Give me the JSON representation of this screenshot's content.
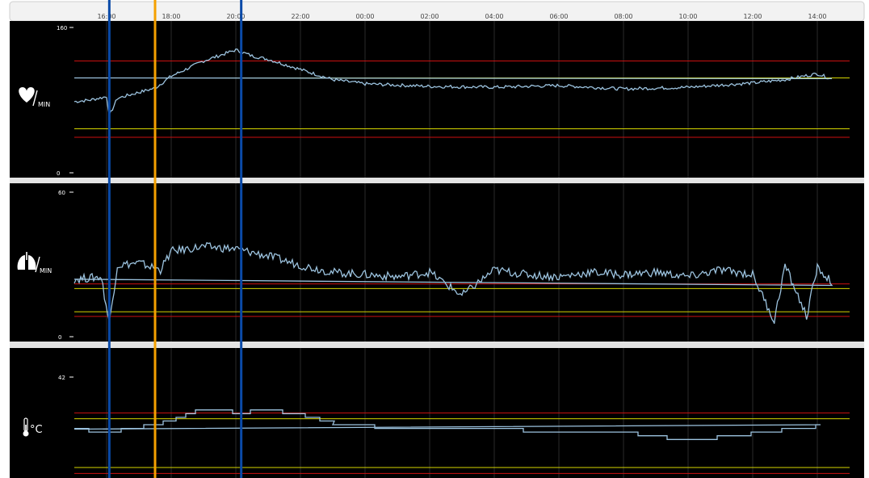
{
  "time_axis": {
    "ticks": [
      "16:00",
      "18:00",
      "20:00",
      "22:00",
      "00:00",
      "02:00",
      "04:00",
      "06:00",
      "08:00",
      "10:00",
      "12:00",
      "14:00"
    ]
  },
  "markers": [
    {
      "name": "marker-blue-1",
      "color": "#0a4aa8",
      "time": "16:05"
    },
    {
      "name": "marker-orange",
      "color": "#f5a000",
      "time": "17:30"
    },
    {
      "name": "marker-blue-2",
      "color": "#0a4aa8",
      "time": "20:10"
    }
  ],
  "colors": {
    "panel_bg": "#000000",
    "trace": "#9cc3df",
    "limit_red": "#cc1111",
    "limit_yellow": "#d6d600",
    "grid": "#2a2a2a"
  },
  "panels": [
    {
      "id": "heart-rate",
      "icon": "heart-icon",
      "unit": "MIN",
      "y_max_label": "160",
      "y_min_label": "0",
      "y_max": 160,
      "y_min": 0,
      "limits": {
        "red": [
          130,
          40
        ],
        "yellow": [
          110,
          50
        ]
      },
      "series": [
        [
          "15:00",
          82
        ],
        [
          "15:30",
          84
        ],
        [
          "16:00",
          88
        ],
        [
          "16:05",
          65
        ],
        [
          "16:20",
          86
        ],
        [
          "17:00",
          93
        ],
        [
          "17:30",
          98
        ],
        [
          "18:00",
          112
        ],
        [
          "19:00",
          130
        ],
        [
          "20:00",
          143
        ],
        [
          "20:30",
          136
        ],
        [
          "21:00",
          132
        ],
        [
          "22:00",
          120
        ],
        [
          "23:00",
          108
        ],
        [
          "00:00",
          103
        ],
        [
          "02:00",
          100
        ],
        [
          "04:00",
          99
        ],
        [
          "06:00",
          101
        ],
        [
          "08:00",
          97
        ],
        [
          "10:00",
          99
        ],
        [
          "12:00",
          104
        ],
        [
          "13:00",
          108
        ],
        [
          "14:00",
          115
        ],
        [
          "14:30",
          108
        ],
        [
          "15:00",
          110
        ]
      ]
    },
    {
      "id": "respiration",
      "icon": "lungs-icon",
      "unit": "MIN",
      "y_max_label": "60",
      "y_min_label": "0",
      "y_max": 60,
      "y_min": 0,
      "limits": {
        "red": [
          22,
          8
        ],
        "yellow": [
          20,
          10
        ]
      },
      "series": [
        [
          "15:00",
          24
        ],
        [
          "15:50",
          25
        ],
        [
          "16:05",
          5
        ],
        [
          "16:20",
          30
        ],
        [
          "17:00",
          31
        ],
        [
          "17:40",
          28
        ],
        [
          "18:00",
          36
        ],
        [
          "19:00",
          38
        ],
        [
          "20:00",
          37
        ],
        [
          "21:00",
          34
        ],
        [
          "22:00",
          30
        ],
        [
          "23:00",
          27
        ],
        [
          "00:00",
          26
        ],
        [
          "01:00",
          25
        ],
        [
          "02:00",
          27
        ],
        [
          "03:00",
          17
        ],
        [
          "04:00",
          28
        ],
        [
          "05:00",
          26
        ],
        [
          "06:00",
          25
        ],
        [
          "07:00",
          27
        ],
        [
          "08:00",
          26
        ],
        [
          "09:00",
          27
        ],
        [
          "10:00",
          25
        ],
        [
          "11:00",
          28
        ],
        [
          "12:00",
          26
        ],
        [
          "12:40",
          6
        ],
        [
          "13:00",
          30
        ],
        [
          "13:40",
          8
        ],
        [
          "14:00",
          29
        ],
        [
          "14:30",
          22
        ],
        [
          "15:00",
          24
        ]
      ]
    },
    {
      "id": "temperature",
      "icon": "thermometer-icon",
      "unit": "°C",
      "y_max_label": "42",
      "y_max": 42,
      "y_min": 35,
      "limits": {
        "red": [
          39.3,
          35.2
        ],
        "yellow": [
          38.9,
          35.6
        ]
      },
      "series": [
        [
          "15:00",
          38.2
        ],
        [
          "16:00",
          38.0
        ],
        [
          "17:00",
          38.3
        ],
        [
          "18:00",
          38.8
        ],
        [
          "19:00",
          39.6
        ],
        [
          "20:00",
          39.3
        ],
        [
          "21:00",
          39.5
        ],
        [
          "22:00",
          39.2
        ],
        [
          "23:00",
          38.6
        ],
        [
          "00:00",
          38.4
        ],
        [
          "02:00",
          38.2
        ],
        [
          "04:00",
          38.3
        ],
        [
          "06:00",
          37.9
        ],
        [
          "08:00",
          38.0
        ],
        [
          "10:00",
          37.4
        ],
        [
          "12:00",
          37.9
        ],
        [
          "14:00",
          38.4
        ],
        [
          "15:00",
          38.2
        ]
      ]
    }
  ]
}
